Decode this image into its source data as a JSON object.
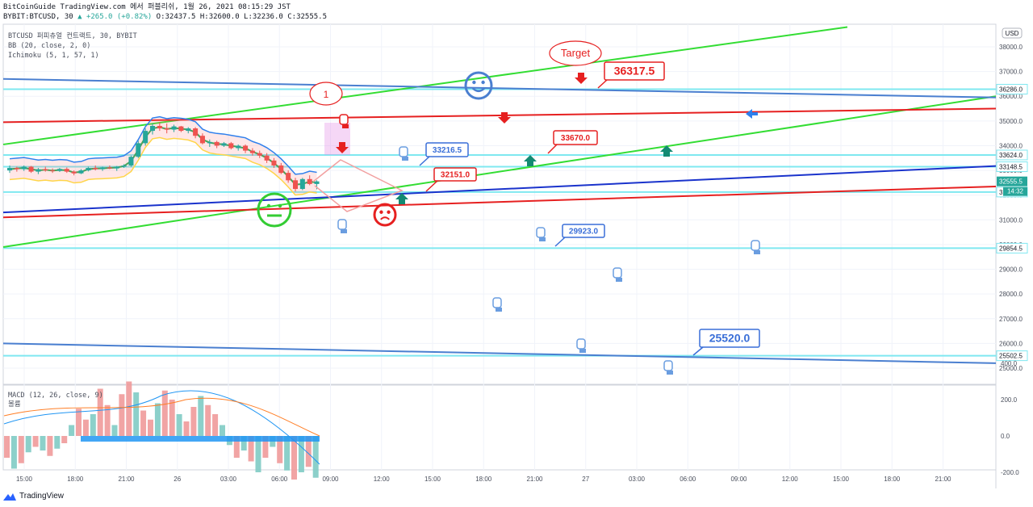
{
  "header": {
    "line1": "BitCoinGuide TradingView.com 에서 퍼블리쉬, 1월 26, 2021 08:15:29 JST",
    "line2_symbol": "BYBIT:BTCUSD, 30",
    "line2_change": "▲ +265.0 (+0.82%)",
    "line2_ohlc": "O:32437.5 H:32600.0 L:32236.0 C:32555.5"
  },
  "legend": {
    "title": "BTCUSD 퍼피츄얼 컨트랙트, 30, BYBIT",
    "bb": "BB (20, close, 2, 0)",
    "ichimoku": "Ichimoku (5, 1, 57, 1)"
  },
  "macd_legend": {
    "title": "MACD (12, 26, close, 9)",
    "sub": "볼륨"
  },
  "footer": {
    "brand": "TradingView"
  },
  "currency_label": "USD",
  "colors": {
    "green_channel": "#33dd33",
    "red_line": "#e62020",
    "blue_line": "#1a33cc",
    "steel_line": "#4a7fd0",
    "cyan_level": "#7fe8f0",
    "up_arrow": "#138a72",
    "down_arrow": "#e62020",
    "callout_blue": "#3a6fd8",
    "callout_red": "#e62020"
  },
  "chart_data": [
    {
      "type": "candlestick",
      "symbol": "BYBIT:BTCUSD",
      "interval": "30",
      "x_ticks": [
        "15:00",
        "18:00",
        "21:00",
        "26",
        "03:00",
        "06:00",
        "09:00",
        "12:00",
        "15:00",
        "18:00",
        "21:00",
        "27",
        "03:00",
        "06:00",
        "09:00",
        "12:00",
        "15:00",
        "18:00",
        "21:00"
      ],
      "y_ticks": [
        25000,
        26000,
        27000,
        28000,
        29000,
        30000,
        31000,
        32000,
        33000,
        34000,
        35000,
        36000,
        37000,
        38000
      ],
      "ylim": [
        24600,
        38600
      ],
      "last_price": 32555.5,
      "last_price_time": "14:32",
      "horizontal_levels": [
        36286.0,
        33624.0,
        33148.5,
        32125.0,
        29854.5,
        25502.5
      ],
      "callouts": [
        {
          "text": "Target",
          "shape": "bubble"
        },
        {
          "text": "36317.5",
          "color": "red"
        },
        {
          "text": "33670.0",
          "color": "red"
        },
        {
          "text": "33216.5",
          "color": "blue"
        },
        {
          "text": "32151.0",
          "color": "red"
        },
        {
          "text": "29923.0",
          "color": "blue"
        },
        {
          "text": "25520.0",
          "color": "blue"
        },
        {
          "text": "1",
          "shape": "bubble"
        }
      ],
      "candles_approx": [
        [
          33000,
          33200,
          32900,
          33100
        ],
        [
          33100,
          33150,
          32950,
          33050
        ],
        [
          33050,
          33200,
          32980,
          33150
        ],
        [
          33150,
          33180,
          32900,
          32950
        ],
        [
          32950,
          33100,
          32850,
          33050
        ],
        [
          33050,
          33150,
          32950,
          33000
        ],
        [
          33000,
          33080,
          32900,
          32980
        ],
        [
          32980,
          33100,
          32940,
          33060
        ],
        [
          33060,
          33120,
          32900,
          32950
        ],
        [
          32950,
          33000,
          32800,
          32880
        ],
        [
          32880,
          33050,
          32850,
          33000
        ],
        [
          33000,
          33150,
          32960,
          33100
        ],
        [
          33100,
          33200,
          33000,
          33050
        ],
        [
          33050,
          33150,
          32980,
          33120
        ],
        [
          33120,
          33200,
          33050,
          33080
        ],
        [
          33080,
          33180,
          32980,
          33150
        ],
        [
          33150,
          33250,
          33100,
          33200
        ],
        [
          33200,
          33600,
          33150,
          33550
        ],
        [
          33550,
          34200,
          33500,
          34100
        ],
        [
          34100,
          34700,
          34000,
          34600
        ],
        [
          34600,
          34900,
          34450,
          34800
        ],
        [
          34800,
          34950,
          34600,
          34700
        ],
        [
          34700,
          34900,
          34500,
          34650
        ],
        [
          34650,
          34850,
          34550,
          34780
        ],
        [
          34780,
          34800,
          34550,
          34600
        ],
        [
          34600,
          34750,
          34500,
          34700
        ],
        [
          34700,
          34750,
          34300,
          34400
        ],
        [
          34400,
          34500,
          34050,
          34100
        ],
        [
          34100,
          34250,
          33950,
          34150
        ],
        [
          34150,
          34200,
          33900,
          34000
        ],
        [
          34000,
          34150,
          33950,
          34100
        ],
        [
          34100,
          34150,
          33850,
          33900
        ],
        [
          33900,
          34050,
          33800,
          34000
        ],
        [
          34000,
          34050,
          33700,
          33800
        ],
        [
          33800,
          33900,
          33600,
          33700
        ],
        [
          33700,
          33800,
          33500,
          33600
        ],
        [
          33600,
          33700,
          33300,
          33400
        ],
        [
          33400,
          33500,
          33100,
          33200
        ],
        [
          33200,
          33300,
          32850,
          32900
        ],
        [
          32900,
          33000,
          32500,
          32600
        ],
        [
          32600,
          32700,
          32150,
          32250
        ],
        [
          32250,
          32700,
          32200,
          32650
        ],
        [
          32650,
          32800,
          32400,
          32450
        ],
        [
          32450,
          32600,
          32236,
          32555.5
        ]
      ],
      "macd_histogram": [
        {
          "v": -120
        },
        {
          "v": -180
        },
        {
          "v": -150
        },
        {
          "v": -90
        },
        {
          "v": -60
        },
        {
          "v": -80
        },
        {
          "v": -110
        },
        {
          "v": -70
        },
        {
          "v": -40
        },
        {
          "v": 60
        },
        {
          "v": 150
        },
        {
          "v": 90
        },
        {
          "v": 120
        },
        {
          "v": 260
        },
        {
          "v": 170
        },
        {
          "v": 60
        },
        {
          "v": 230
        },
        {
          "v": 300
        },
        {
          "v": 240
        },
        {
          "v": 140
        },
        {
          "v": 90
        },
        {
          "v": 180
        },
        {
          "v": 250
        },
        {
          "v": 200
        },
        {
          "v": 120
        },
        {
          "v": 80
        },
        {
          "v": 160
        },
        {
          "v": 220
        },
        {
          "v": 170
        },
        {
          "v": 120
        },
        {
          "v": 60
        },
        {
          "v": -50
        },
        {
          "v": -120
        },
        {
          "v": -80
        },
        {
          "v": -140
        },
        {
          "v": -200
        },
        {
          "v": -120
        },
        {
          "v": -60
        },
        {
          "v": -150
        },
        {
          "v": -190
        },
        {
          "v": -240
        },
        {
          "v": -200
        },
        {
          "v": -170
        },
        {
          "v": -230
        }
      ],
      "macd_ticks": [
        400.0,
        200.0,
        0.0,
        -200.0
      ]
    }
  ]
}
